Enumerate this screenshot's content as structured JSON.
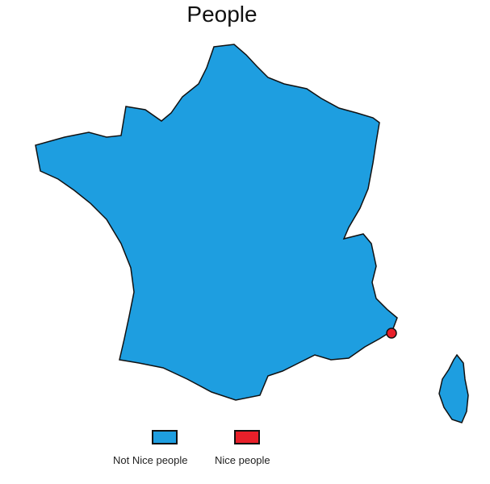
{
  "title": "People",
  "colors": {
    "not_nice": "#1e9ee0",
    "nice": "#e8202a",
    "outline": "#111111"
  },
  "legend": [
    {
      "label": "Not Nice people",
      "color": "#1e9ee0"
    },
    {
      "label": "Nice people",
      "color": "#e8202a"
    }
  ],
  "regions": [
    {
      "name": "France mainland",
      "category": "Not Nice people"
    },
    {
      "name": "Corsica",
      "category": "Not Nice people"
    },
    {
      "name": "Nice",
      "category": "Nice people"
    }
  ]
}
